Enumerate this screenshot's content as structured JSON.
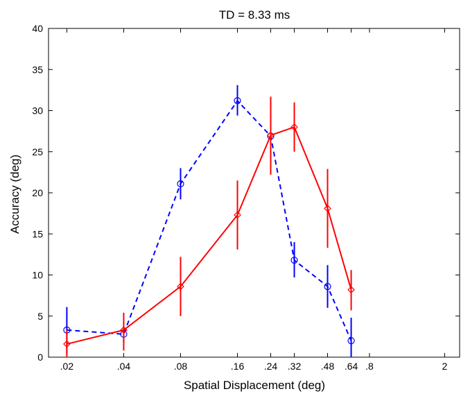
{
  "chart_data": {
    "type": "line",
    "title": "TD = 8.33 ms",
    "xlabel": "Spatial Displacement (deg)",
    "ylabel": "Accuracy (deg)",
    "xscale": "log",
    "xlim": [
      0.016,
      2.4
    ],
    "ylim": [
      0,
      40
    ],
    "grid": false,
    "legend": "none",
    "x_ticks": [
      0.02,
      0.04,
      0.08,
      0.16,
      0.24,
      0.32,
      0.48,
      0.64,
      0.8,
      2
    ],
    "x_tick_labels": [
      ".02",
      ".04",
      ".08",
      ".16",
      ".24",
      ".32",
      ".48",
      ".64",
      ".8",
      "2"
    ],
    "y_ticks": [
      0,
      5,
      10,
      15,
      20,
      25,
      30,
      35,
      40
    ],
    "y_tick_labels": [
      "0",
      "5",
      "10",
      "15",
      "20",
      "25",
      "30",
      "35",
      "40"
    ],
    "series": [
      {
        "color": "#0000ff",
        "line_style": "dashed",
        "marker": "circle",
        "x": [
          0.02,
          0.04,
          0.08,
          0.16,
          0.24,
          0.32,
          0.48,
          0.64
        ],
        "y": [
          3.3,
          2.8,
          21.1,
          31.2,
          26.9,
          11.8,
          8.6,
          2.0
        ],
        "err_low": [
          0.5,
          1.8,
          19.2,
          29.4,
          26.4,
          9.7,
          6.0,
          0.0
        ],
        "err_high": [
          6.1,
          3.7,
          23.0,
          33.1,
          27.3,
          14.0,
          11.2,
          4.8
        ]
      },
      {
        "color": "#ff0000",
        "line_style": "solid",
        "marker": "diamond",
        "x": [
          0.02,
          0.04,
          0.08,
          0.16,
          0.24,
          0.32,
          0.48,
          0.64
        ],
        "y": [
          1.6,
          3.3,
          8.6,
          17.3,
          27.0,
          28.0,
          18.1,
          8.2
        ],
        "err_low": [
          0.0,
          0.8,
          5.0,
          13.1,
          22.2,
          25.0,
          13.3,
          5.7
        ],
        "err_high": [
          3.3,
          5.4,
          12.2,
          21.5,
          31.7,
          31.0,
          22.9,
          10.6
        ]
      }
    ]
  }
}
